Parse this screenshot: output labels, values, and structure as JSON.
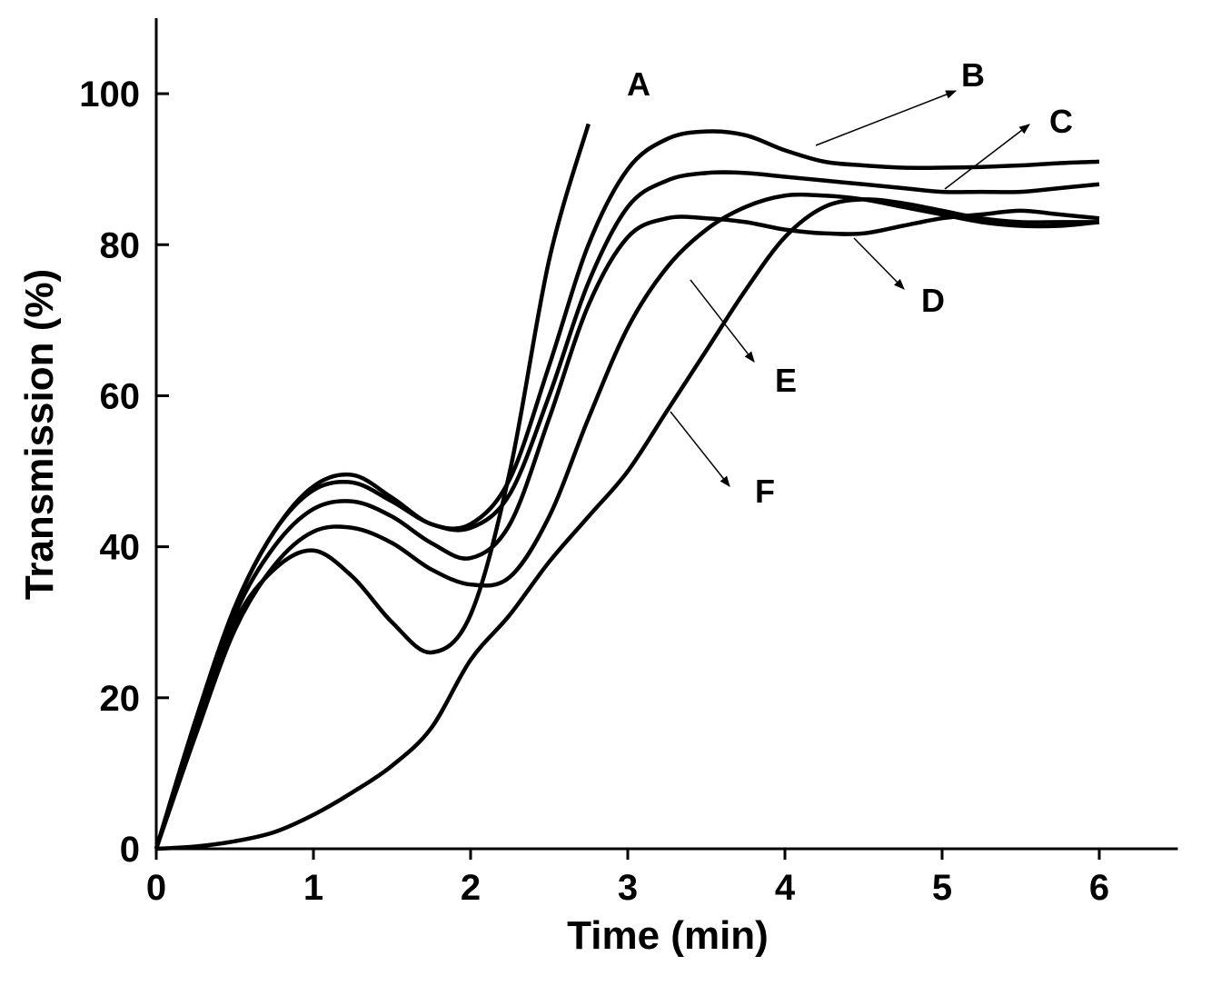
{
  "chart_data": {
    "type": "line",
    "x_label": "Time (min)",
    "y_label": "Transmission (%)",
    "x": [
      0,
      0.25,
      0.5,
      0.75,
      1,
      1.25,
      1.5,
      1.75,
      2,
      2.25,
      2.5,
      2.75,
      3,
      3.25,
      3.5,
      3.75,
      4,
      4.25,
      4.5,
      4.75,
      5,
      5.25,
      5.5,
      5.75,
      6
    ],
    "series": [
      {
        "name": "A",
        "color": "#000000",
        "values": [
          0,
          16,
          30,
          37,
          39.5,
          36,
          30,
          26,
          31,
          50,
          78,
          96,
          null,
          null,
          null,
          null,
          null,
          null,
          null,
          null,
          null,
          null,
          null,
          null,
          null
        ]
      },
      {
        "name": "B",
        "color": "#000000",
        "values": [
          0,
          17,
          32,
          42,
          48,
          49.5,
          46.5,
          43,
          43,
          49,
          64,
          80,
          90,
          94,
          95,
          94.5,
          92.5,
          91,
          90.5,
          90.2,
          90.2,
          90.3,
          90.5,
          90.8,
          91
        ]
      },
      {
        "name": "C",
        "color": "#000000",
        "values": [
          0,
          17,
          32,
          42,
          47.5,
          48.5,
          46,
          43,
          42.5,
          47,
          60,
          75,
          85,
          88.5,
          89.5,
          89.5,
          89,
          88.5,
          88,
          87.5,
          87,
          87,
          87,
          87.5,
          88
        ]
      },
      {
        "name": "D",
        "color": "#000000",
        "values": [
          0,
          16,
          31,
          40,
          45,
          46,
          44,
          40.5,
          38.5,
          43,
          57,
          72,
          81,
          83.5,
          83.5,
          83,
          82,
          81.5,
          81.5,
          82.5,
          83.5,
          84,
          84.5,
          84,
          83.5
        ]
      },
      {
        "name": "E",
        "color": "#000000",
        "values": [
          0,
          15,
          29,
          37.5,
          42,
          42.5,
          40.5,
          37,
          35,
          36,
          44,
          57,
          69,
          77,
          82,
          85,
          86.5,
          86.5,
          86,
          85,
          84,
          83,
          82.5,
          82.5,
          83
        ]
      },
      {
        "name": "F",
        "color": "#000000",
        "values": [
          0,
          0.3,
          1,
          2.2,
          4.5,
          7.5,
          11,
          16,
          25,
          31,
          38,
          44,
          50,
          58,
          66,
          74,
          81,
          85,
          86,
          85.5,
          84.5,
          83.5,
          83,
          83,
          83
        ]
      }
    ],
    "xlim": [
      0,
      6.5
    ],
    "xticks": [
      0,
      1,
      2,
      3,
      4,
      5,
      6
    ],
    "ylim": [
      0,
      110
    ],
    "yticks": [
      0,
      20,
      40,
      60,
      80,
      100
    ],
    "grid": false
  }
}
